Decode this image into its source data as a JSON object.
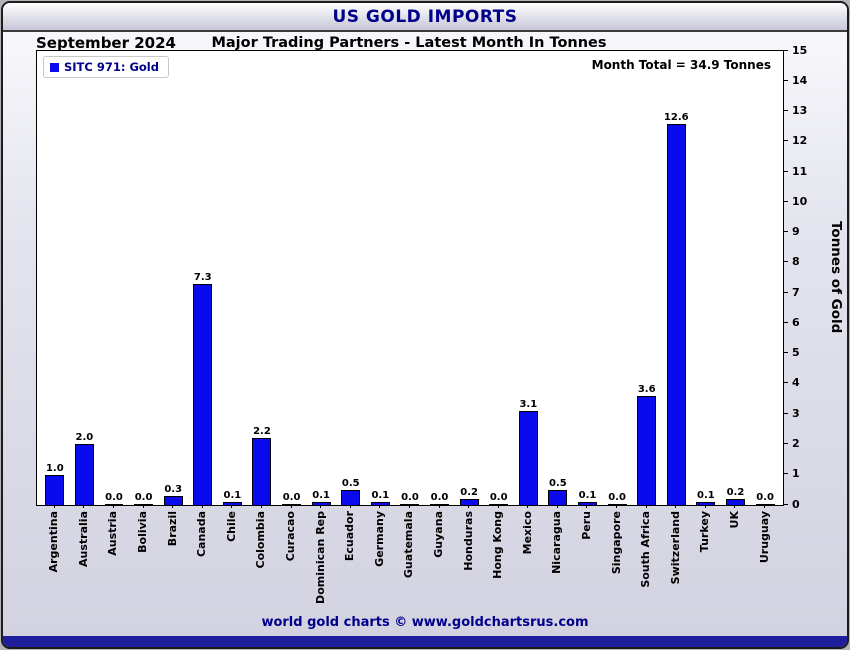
{
  "title_bar": {
    "text": "US GOLD IMPORTS"
  },
  "header": {
    "left": "September 2024",
    "center": "Major Trading Partners - Latest Month In Tonnes"
  },
  "legend": {
    "label": "SITC 971: Gold",
    "swatch_color": "#0a0aee"
  },
  "annotations": {
    "month_total": "Month Total = 34.9 Tonnes"
  },
  "y_axis": {
    "label": "Tonnes of Gold"
  },
  "footer": {
    "credit": "world gold charts © www.goldchartsrus.com"
  },
  "chart_data": {
    "type": "bar",
    "title": "US GOLD IMPORTS",
    "subtitle": "Major Trading Partners - Latest Month In Tonnes",
    "period": "September 2024",
    "categories": [
      "Argentina",
      "Australia",
      "Austria",
      "Bolivia",
      "Brazil",
      "Canada",
      "Chile",
      "Colombia",
      "Curacao",
      "Dominican Rep",
      "Ecuador",
      "Germany",
      "Guatemala",
      "Guyana",
      "Honduras",
      "Hong Kong",
      "Mexico",
      "Nicaragua",
      "Peru",
      "Singapore",
      "South Africa",
      "Switzerland",
      "Turkey",
      "UK",
      "Uruguay"
    ],
    "values": [
      1.0,
      2.0,
      0.0,
      0.0,
      0.3,
      7.3,
      0.1,
      2.2,
      0.0,
      0.1,
      0.5,
      0.1,
      0.0,
      0.0,
      0.2,
      0.0,
      3.1,
      0.5,
      0.1,
      0.0,
      3.6,
      12.6,
      0.1,
      0.2,
      0.0
    ],
    "series_name": "SITC 971: Gold",
    "month_total": 34.9,
    "xlabel": "",
    "ylabel": "Tonnes of Gold",
    "ylim": [
      0,
      15
    ],
    "yticks": [
      0,
      1,
      2,
      3,
      4,
      5,
      6,
      7,
      8,
      9,
      10,
      11,
      12,
      13,
      14,
      15
    ],
    "grid": false,
    "legend_position": "upper left",
    "bar_color": "#0a0aee",
    "bar_edge_color": "#000000"
  }
}
